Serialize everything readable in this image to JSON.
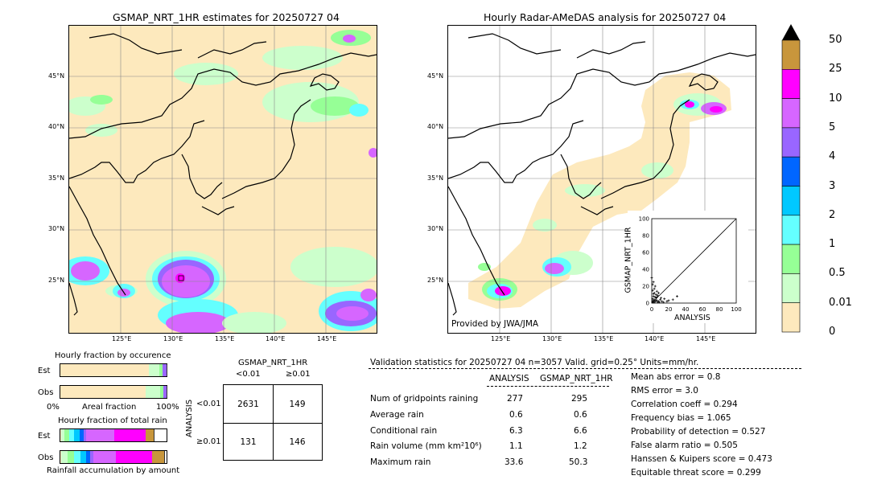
{
  "left_map": {
    "title": "GSMAP_NRT_1HR estimates for 20250727 04",
    "lat_labels": [
      "45°N",
      "40°N",
      "35°N",
      "30°N",
      "25°N"
    ],
    "lon_labels": [
      "125°E",
      "130°E",
      "135°E",
      "140°E",
      "145°E"
    ]
  },
  "right_map": {
    "title": "Hourly Radar-AMeDAS analysis for 20250727 04",
    "lat_labels": [
      "45°N",
      "40°N",
      "35°N",
      "30°N",
      "25°N"
    ],
    "lon_labels": [
      "125°E",
      "130°E",
      "135°E",
      "140°E",
      "145°E"
    ],
    "credit": "Provided by JWA/JMA"
  },
  "colorbar": {
    "labels": [
      "50",
      "25",
      "10",
      "5",
      "4",
      "3",
      "2",
      "1",
      "0.5",
      "0.01",
      "0"
    ],
    "colors": [
      "#c8963c",
      "#ff00ff",
      "#d666ff",
      "#9966ff",
      "#0066ff",
      "#00c8ff",
      "#64ffff",
      "#96ff96",
      "#ccffcc",
      "#fde9bd"
    ]
  },
  "chart_data": [
    {
      "type": "scatter",
      "xlabel": "ANALYSIS",
      "ylabel": "GSMAP_NRT_1HR",
      "xlim": [
        0,
        100
      ],
      "ylim": [
        0,
        100
      ],
      "ticks": [
        "0",
        "20",
        "40",
        "60",
        "80",
        "100"
      ],
      "points": [
        [
          1,
          1
        ],
        [
          2,
          3
        ],
        [
          3,
          1
        ],
        [
          1,
          5
        ],
        [
          4,
          2
        ],
        [
          5,
          6
        ],
        [
          2,
          8
        ],
        [
          6,
          3
        ],
        [
          8,
          2
        ],
        [
          3,
          12
        ],
        [
          1,
          15
        ],
        [
          7,
          9
        ],
        [
          10,
          4
        ],
        [
          12,
          2
        ],
        [
          4,
          20
        ],
        [
          2,
          25
        ],
        [
          15,
          5
        ],
        [
          20,
          3
        ],
        [
          5,
          10
        ],
        [
          9,
          1
        ],
        [
          1,
          2
        ],
        [
          2,
          1
        ],
        [
          3,
          4
        ],
        [
          6,
          7
        ],
        [
          11,
          6
        ],
        [
          14,
          1
        ],
        [
          18,
          2
        ],
        [
          25,
          4
        ],
        [
          30,
          8
        ],
        [
          0,
          30
        ],
        [
          1,
          22
        ],
        [
          3,
          17
        ],
        [
          6,
          14
        ],
        [
          2,
          11
        ],
        [
          8,
          12
        ],
        [
          4,
          7
        ],
        [
          5,
          3
        ],
        [
          7,
          1
        ]
      ]
    },
    {
      "type": "bar",
      "title": "Hourly fraction by occurence",
      "xlabel": "Areal fraction",
      "categories": [
        "Est",
        "Obs"
      ],
      "x_tick_labels": [
        "0%",
        "100%"
      ],
      "series": [
        {
          "values": [
            0.83,
            0.8
          ]
        },
        {
          "values": [
            0.1,
            0.14
          ]
        },
        {
          "values": [
            0.03,
            0.03
          ]
        },
        {
          "values": [
            0.04,
            0.03
          ]
        }
      ]
    },
    {
      "type": "bar",
      "title": "Hourly fraction of total rain",
      "xlabel": "Rainfall accumulation by amount",
      "categories": [
        "Est",
        "Obs"
      ],
      "series": [
        {
          "values": [
            0.01,
            0.01
          ]
        },
        {
          "values": [
            0.03,
            0.06
          ]
        },
        {
          "values": [
            0.04,
            0.06
          ]
        },
        {
          "values": [
            0.05,
            0.06
          ]
        },
        {
          "values": [
            0.05,
            0.05
          ]
        },
        {
          "values": [
            0.04,
            0.04
          ]
        },
        {
          "values": [
            0.02,
            0.03
          ]
        },
        {
          "values": [
            0.27,
            0.21
          ]
        },
        {
          "values": [
            0.29,
            0.34
          ]
        },
        {
          "values": [
            0.08,
            0.12
          ]
        }
      ]
    },
    {
      "type": "table",
      "title": "GSMAP_NRT_1HR",
      "col_labels": [
        "<0.01",
        "≥0.01"
      ],
      "row_title": "ANALYSIS",
      "row_labels": [
        "<0.01",
        "≥0.01"
      ],
      "cells": [
        [
          "2631",
          "149"
        ],
        [
          "131",
          "146"
        ]
      ]
    },
    {
      "type": "table",
      "title": "Validation statistics for 20250727 04  n=3057 Valid. grid=0.25° Units=mm/hr.",
      "columns": [
        "ANALYSIS",
        "GSMAP_NRT_1HR"
      ],
      "rows": [
        {
          "label": "Num of gridpoints raining",
          "analysis": "277",
          "gsmap": "295"
        },
        {
          "label": "Average rain",
          "analysis": "0.6",
          "gsmap": "0.6"
        },
        {
          "label": "Conditional rain",
          "analysis": "6.3",
          "gsmap": "6.6"
        },
        {
          "label": "Rain volume (mm km²10⁶)",
          "analysis": "1.1",
          "gsmap": "1.2"
        },
        {
          "label": "Maximum rain",
          "analysis": "33.6",
          "gsmap": "50.3"
        }
      ],
      "scores": [
        "Mean abs error =    0.8",
        "RMS error =    3.0",
        "Correlation coeff =  0.294",
        "Frequency bias =  1.065",
        "Probability of detection =  0.527",
        "False alarm ratio =  0.505",
        "Hanssen & Kuipers score =  0.473",
        "Equitable threat score =  0.299"
      ]
    }
  ]
}
